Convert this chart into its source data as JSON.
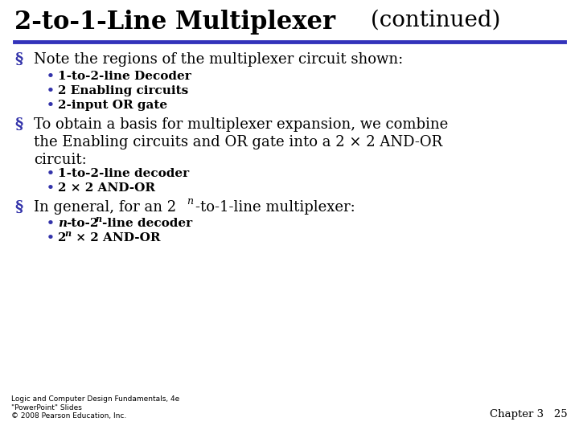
{
  "title_bold": "2-to-1-Line Multiplexer",
  "title_normal": " (continued)",
  "title_fontsize": 22,
  "title_continued_fontsize": 20,
  "separator_color": "#3333bb",
  "bg_color": "#ffffff",
  "bullet_color": "#3333aa",
  "sub_bullet_color": "#3333aa",
  "body_fontsize": 13,
  "sub_fontsize": 11,
  "footer_left": "Logic and Computer Design Fundamentals, 4e\n\"PowerPoint\" Slides\n© 2008 Pearson Education, Inc.",
  "footer_right": "Chapter 3   25",
  "footer_fontsize": 6.5
}
